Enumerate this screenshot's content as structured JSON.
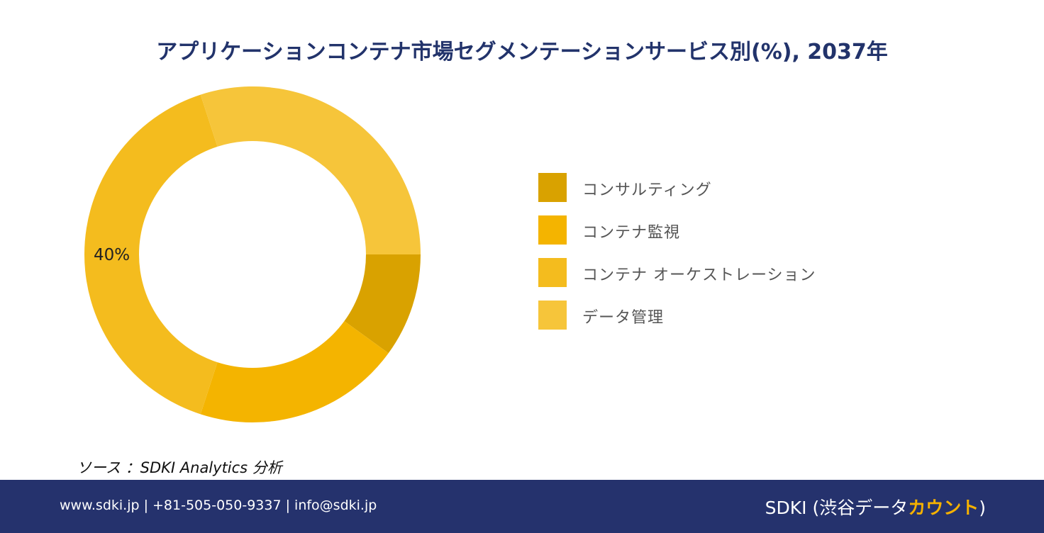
{
  "title": "アプリケーションコンテナ市場セグメンテーションサービス別(%), 2037年",
  "chart_data": {
    "type": "pie",
    "donut": true,
    "title": "アプリケーションコンテナ市場セグメンテーションサービス別(%), 2037年",
    "categories": [
      "コンサルティング",
      "コンテナ監視",
      "コンテナ オーケストレーション",
      "データ管理"
    ],
    "values": [
      10,
      20,
      40,
      30
    ],
    "colors": [
      "#d9a200",
      "#f4b400",
      "#f4bc1e",
      "#f6c53a"
    ],
    "data_labels": [
      "",
      "",
      "40%",
      ""
    ],
    "legend_position": "right"
  },
  "source": "ソース ：SDKI Analytics 分析",
  "footer": {
    "contact": "www.sdki.jp | +81-505-050-9337 | info@sdki.jp",
    "brand_prefix": "SDKI (渋谷データ",
    "brand_accent": "カウント",
    "brand_suffix": ")"
  }
}
